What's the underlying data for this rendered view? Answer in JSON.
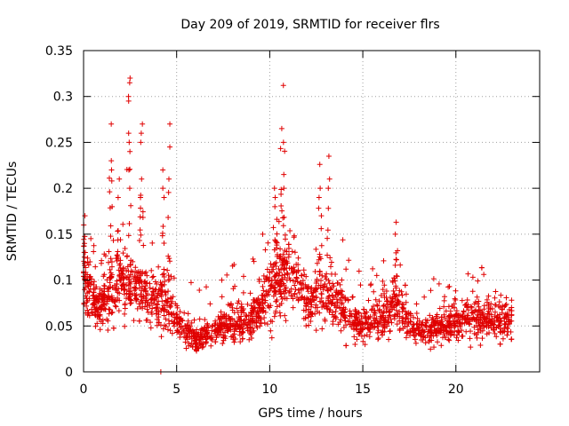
{
  "chart_data": {
    "type": "scatter",
    "title": "Day 209 of 2019, SRMTID for receiver flrs",
    "xlabel": "GPS time / hours",
    "ylabel": "SRMTID / TECUs",
    "xlim": [
      0,
      24.5
    ],
    "ylim": [
      0,
      0.35
    ],
    "grid": true,
    "marker": "plus",
    "series_color": "#e00000",
    "xticks": [
      {
        "value": 0,
        "label": "0"
      },
      {
        "value": 5,
        "label": "5"
      },
      {
        "value": 10,
        "label": "10"
      },
      {
        "value": 15,
        "label": "15"
      },
      {
        "value": 20,
        "label": "20"
      }
    ],
    "yticks": [
      {
        "value": 0,
        "label": "0"
      },
      {
        "value": 0.05,
        "label": "0.05"
      },
      {
        "value": 0.1,
        "label": "0.1"
      },
      {
        "value": 0.15,
        "label": "0.15"
      },
      {
        "value": 0.2,
        "label": "0.2"
      },
      {
        "value": 0.25,
        "label": "0.25"
      },
      {
        "value": 0.3,
        "label": "0.3"
      },
      {
        "value": 0.35,
        "label": "0.35"
      }
    ],
    "baseline_profile": {
      "x": [
        0,
        0.3,
        0.6,
        1.0,
        1.5,
        2.0,
        2.5,
        3.0,
        3.5,
        4.0,
        4.5,
        5.0,
        5.5,
        6.0,
        6.5,
        7.0,
        8.0,
        9.0,
        9.5,
        10.0,
        10.5,
        11.0,
        11.5,
        12.0,
        12.5,
        13.0,
        13.5,
        14.0,
        14.5,
        15.0,
        16.0,
        16.5,
        17.0,
        17.5,
        18.0,
        18.5,
        19.0,
        20.0,
        21.0,
        22.0,
        23.0
      ],
      "y": [
        0.11,
        0.09,
        0.07,
        0.075,
        0.085,
        0.1,
        0.095,
        0.09,
        0.08,
        0.075,
        0.07,
        0.055,
        0.045,
        0.035,
        0.04,
        0.045,
        0.05,
        0.06,
        0.065,
        0.09,
        0.1,
        0.11,
        0.1,
        0.075,
        0.085,
        0.08,
        0.075,
        0.07,
        0.055,
        0.05,
        0.06,
        0.07,
        0.075,
        0.05,
        0.045,
        0.045,
        0.05,
        0.055,
        0.06,
        0.055,
        0.06
      ]
    },
    "point_count": 2200,
    "spikes": [
      {
        "x": 0.05,
        "values": [
          0.17,
          0.16,
          0.15,
          0.14,
          0.13
        ]
      },
      {
        "x": 1.5,
        "values": [
          0.27,
          0.23,
          0.22,
          0.18
        ]
      },
      {
        "x": 1.9,
        "values": [
          0.21,
          0.19
        ]
      },
      {
        "x": 2.45,
        "values": [
          0.32,
          0.315,
          0.3,
          0.295,
          0.26,
          0.25,
          0.24,
          0.22,
          0.2
        ]
      },
      {
        "x": 3.1,
        "values": [
          0.27,
          0.26,
          0.25,
          0.21,
          0.19
        ]
      },
      {
        "x": 4.3,
        "values": [
          0.22,
          0.2,
          0.19
        ]
      },
      {
        "x": 4.6,
        "values": [
          0.27,
          0.245,
          0.21
        ]
      },
      {
        "x": 10.3,
        "values": [
          0.2,
          0.19,
          0.18
        ]
      },
      {
        "x": 10.7,
        "values": [
          0.312,
          0.265,
          0.25,
          0.215,
          0.2
        ]
      },
      {
        "x": 12.7,
        "values": [
          0.226,
          0.2,
          0.19
        ]
      },
      {
        "x": 13.2,
        "values": [
          0.235,
          0.21,
          0.2
        ]
      },
      {
        "x": 16.8,
        "values": [
          0.163,
          0.15
        ]
      }
    ],
    "isolated_points": [
      {
        "x": 4.15,
        "y": 0.0
      }
    ]
  }
}
